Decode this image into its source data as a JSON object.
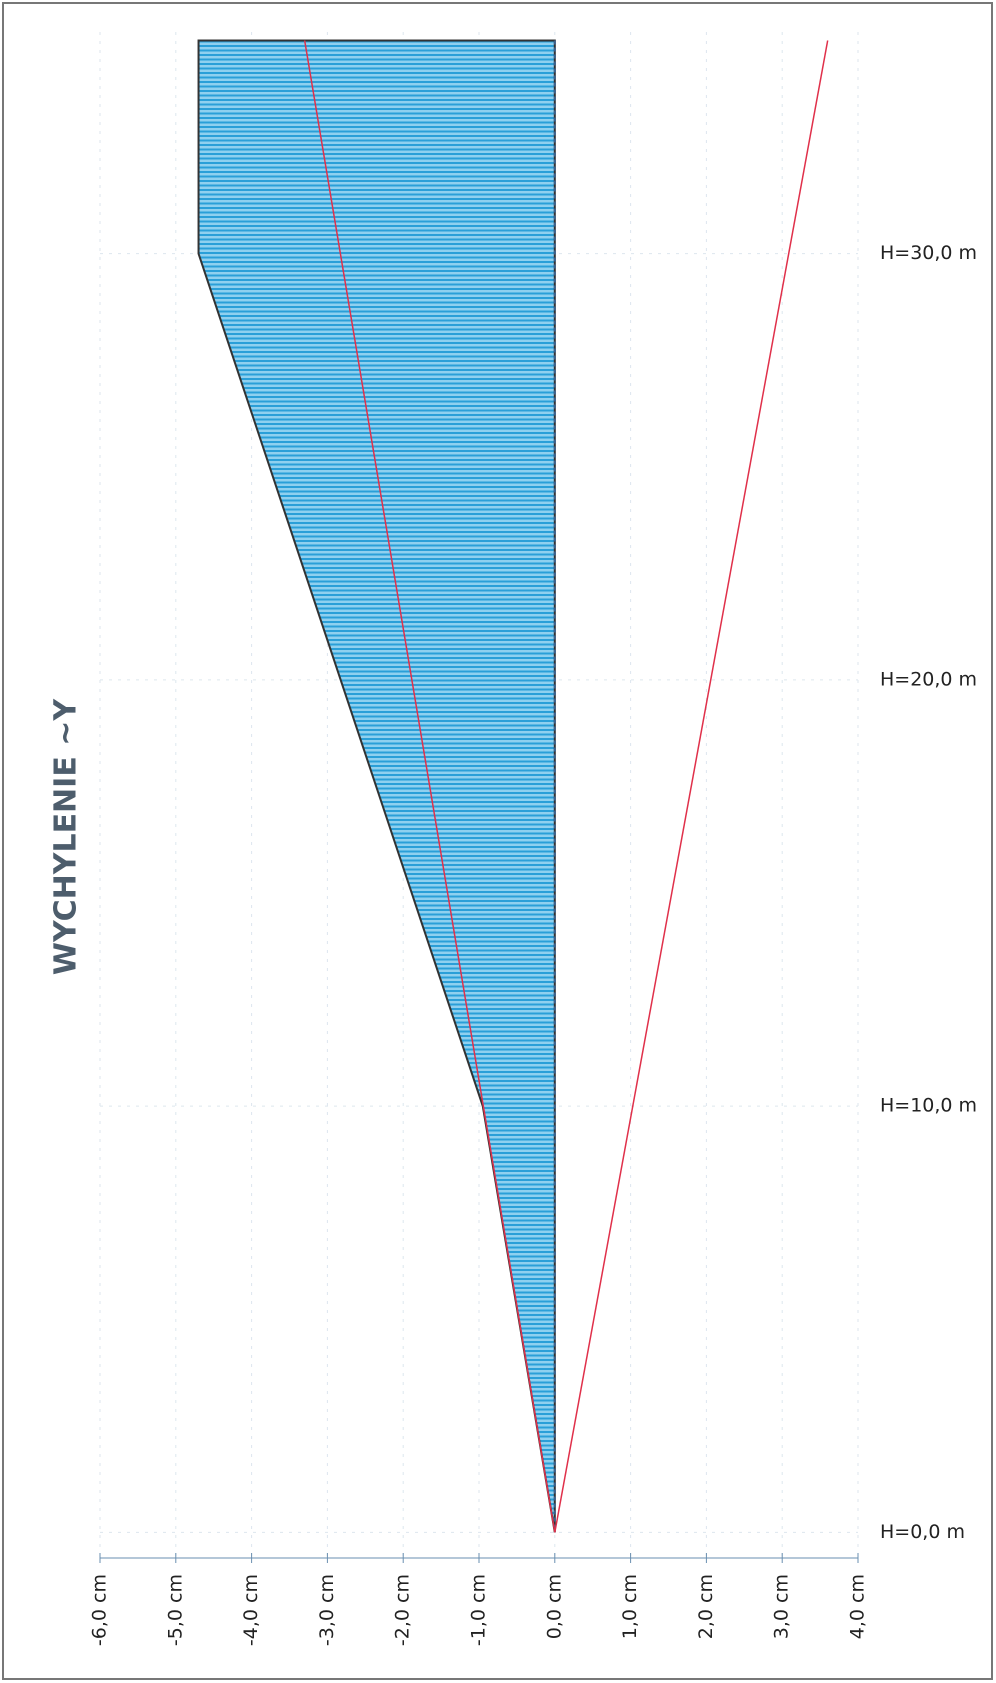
{
  "chart_data": {
    "type": "area",
    "title": "WYCHYLENIE ~Y",
    "xlim": [
      -6,
      4
    ],
    "xticks": [
      {
        "value": -6,
        "label": "-6,0 cm"
      },
      {
        "value": -5,
        "label": "-5,0 cm"
      },
      {
        "value": -4,
        "label": "-4,0 cm"
      },
      {
        "value": -3,
        "label": "-3,0 cm"
      },
      {
        "value": -2,
        "label": "-2,0 cm"
      },
      {
        "value": -1,
        "label": "-1,0 cm"
      },
      {
        "value": 0,
        "label": "0,0 cm"
      },
      {
        "value": 1,
        "label": "1,0 cm"
      },
      {
        "value": 2,
        "label": "2,0 cm"
      },
      {
        "value": 3,
        "label": "3,0 cm"
      },
      {
        "value": 4,
        "label": "4,0 cm"
      }
    ],
    "ylim": [
      -0.6,
      35.2
    ],
    "yticks": [
      {
        "value": 0,
        "label": "H=0,0 m"
      },
      {
        "value": 10,
        "label": "H=10,0 m"
      },
      {
        "value": 20,
        "label": "H=20,0 m"
      },
      {
        "value": 30,
        "label": "H=30,0 m"
      }
    ],
    "grid": true,
    "series": [
      {
        "color": "#3aaee0",
        "y": [
          0,
          10,
          30,
          35
        ],
        "values": [
          0,
          -0.95,
          -4.7,
          -4.7
        ]
      },
      {
        "color": "#e0304a",
        "y": [
          0,
          35
        ],
        "values": [
          0,
          -3.3
        ]
      },
      {
        "color": "#e0304a",
        "y": [
          0,
          35
        ],
        "values": [
          0,
          3.6
        ]
      }
    ]
  }
}
